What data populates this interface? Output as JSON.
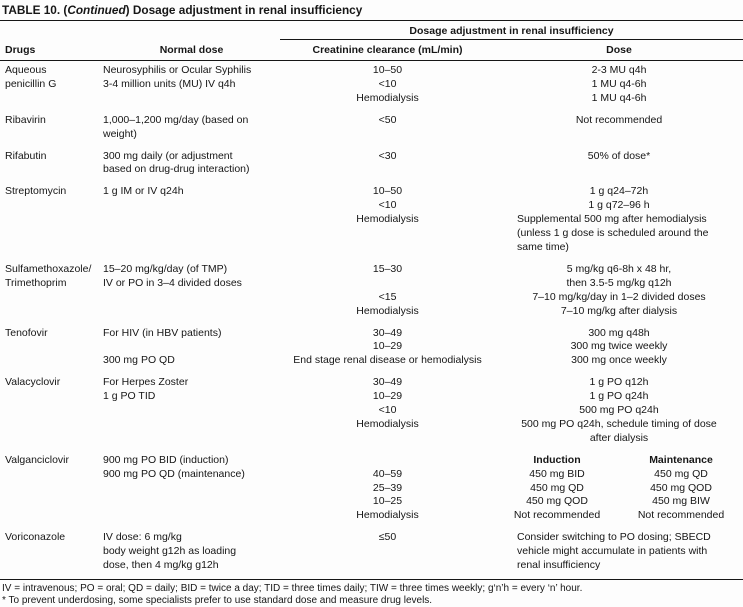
{
  "colors": {
    "text": "#161616",
    "rule": "#161616",
    "background": "#fdfdfd"
  },
  "title": {
    "part1": "TABLE 10. (",
    "italic": "Continued",
    "part2": ") Dosage adjustment in renal insufficiency"
  },
  "header": {
    "group": "Dosage adjustment in renal insufficiency",
    "col_drugs": "Drugs",
    "col_normal_dose": "Normal dose",
    "col_creatinine": "Creatinine clearance (mL/min)",
    "col_dose": "Dose"
  },
  "table": {
    "rows": [
      {
        "drug_name": "Aqueous penicillin G",
        "lines": [
          {
            "drug": "Aqueous",
            "normal": "Neurosyphilis or Ocular Syphilis",
            "cr": "10–50",
            "dose": "2-3 MU q4h"
          },
          {
            "drug": "penicillin G",
            "normal": "3-4 million units (MU) IV q4h",
            "cr": "<10",
            "dose": "1 MU q4-6h"
          },
          {
            "drug": "",
            "normal": "",
            "cr": "Hemodialysis",
            "dose": "1 MU q4-6h"
          }
        ]
      },
      {
        "drug_name": "Ribavirin",
        "lines": [
          {
            "drug": "Ribavirin",
            "normal": "1,000–1,200 mg/day (based on",
            "cr": "<50",
            "dose": "Not recommended"
          },
          {
            "drug": "",
            "normal": "weight)",
            "cr": "",
            "dose": ""
          }
        ]
      },
      {
        "drug_name": "Rifabutin",
        "lines": [
          {
            "drug": "Rifabutin",
            "normal": "300 mg daily (or adjustment",
            "cr": "<30",
            "dose": "50% of dose*"
          },
          {
            "drug": "",
            "normal": "based on drug-drug interaction)",
            "cr": "",
            "dose": ""
          }
        ]
      },
      {
        "drug_name": "Streptomycin",
        "lines": [
          {
            "drug": "Streptomycin",
            "normal": "1 g IM or IV q24h",
            "cr": "10–50",
            "dose": "1 g q24–72h"
          },
          {
            "drug": "",
            "normal": "",
            "cr": "<10",
            "dose": "1 g q72–96 h"
          },
          {
            "drug": "",
            "normal": "",
            "cr": "Hemodialysis",
            "dose": "Supplemental 500 mg after hemodialysis",
            "align": "left"
          },
          {
            "drug": "",
            "normal": "",
            "cr": "",
            "dose": "(unless 1 g dose is scheduled around the",
            "align": "left"
          },
          {
            "drug": "",
            "normal": "",
            "cr": "",
            "dose": "same time)",
            "align": "left"
          }
        ]
      },
      {
        "drug_name": "Sulfamethoxazole/Trimethoprim",
        "lines": [
          {
            "drug": "Sulfamethoxazole/",
            "normal": "15–20 mg/kg/day (of TMP)",
            "cr": "15–30",
            "dose": "5 mg/kg q6-8h x 48 hr,"
          },
          {
            "drug": "Trimethoprim",
            "normal": "IV or PO in 3–4 divided doses",
            "cr": "",
            "dose": "then 3.5-5 mg/kg q12h"
          },
          {
            "drug": "",
            "normal": "",
            "cr": "<15",
            "dose": "7–10 mg/kg/day in 1–2 divided doses"
          },
          {
            "drug": "",
            "normal": "",
            "cr": "Hemodialysis",
            "dose": "7–10 mg/kg after dialysis"
          }
        ]
      },
      {
        "drug_name": "Tenofovir",
        "lines": [
          {
            "drug": "Tenofovir",
            "normal": "For HIV (in HBV patients)",
            "cr": "30–49",
            "dose": "300 mg q48h"
          },
          {
            "drug": "",
            "normal": "",
            "cr": "10–29",
            "dose": "300 mg twice weekly"
          },
          {
            "drug": "",
            "normal": "300 mg PO QD",
            "cr": "End stage renal disease or hemodialysis",
            "dose": "300 mg once weekly"
          }
        ]
      },
      {
        "drug_name": "Valacyclovir",
        "lines": [
          {
            "drug": "Valacyclovir",
            "normal": "For Herpes Zoster",
            "cr": "30–49",
            "dose": "1 g PO q12h"
          },
          {
            "drug": "",
            "normal": "1 g PO TID",
            "cr": "10–29",
            "dose": "1 g PO q24h"
          },
          {
            "drug": "",
            "normal": "",
            "cr": "<10",
            "dose": "500 mg PO q24h"
          },
          {
            "drug": "",
            "normal": "",
            "cr": "Hemodialysis",
            "dose": "500 mg PO q24h, schedule timing of dose"
          },
          {
            "drug": "",
            "normal": "",
            "cr": "",
            "dose": "after dialysis"
          }
        ]
      },
      {
        "drug_name": "Valganciclovir",
        "lines": [
          {
            "drug": "Valganciclovir",
            "normal": "900 mg PO BID (induction)",
            "cr": "",
            "dose_a": "Induction",
            "dose_b": "Maintenance",
            "bold": true
          },
          {
            "drug": "",
            "normal": "900 mg PO QD (maintenance)",
            "cr": "40–59",
            "dose_a": "450 mg BID",
            "dose_b": "450 mg QD"
          },
          {
            "drug": "",
            "normal": "",
            "cr": "25–39",
            "dose_a": "450 mg QD",
            "dose_b": "450 mg QOD"
          },
          {
            "drug": "",
            "normal": "",
            "cr": "10–25",
            "dose_a": "450 mg QOD",
            "dose_b": "450 mg BIW"
          },
          {
            "drug": "",
            "normal": "",
            "cr": "Hemodialysis",
            "dose_a": "Not recommended",
            "dose_b": "Not recommended"
          }
        ]
      },
      {
        "drug_name": "Voriconazole",
        "lines": [
          {
            "drug": "Voriconazole",
            "normal": "IV dose: 6 mg/kg",
            "cr": "≤50",
            "dose": "Consider switching to PO dosing; SBECD",
            "align": "left"
          },
          {
            "drug": "",
            "normal": "body weight g12h as loading",
            "cr": "",
            "dose": "vehicle might accumulate in patients with",
            "align": "left"
          },
          {
            "drug": "",
            "normal": "dose, then 4 mg/kg g12h",
            "cr": "",
            "dose": "renal insufficiency",
            "align": "left"
          }
        ]
      }
    ]
  },
  "footnotes": {
    "abbrev": "IV = intravenous; PO = oral; QD = daily; BID = twice a day; TID = three times daily; TIW = three times weekly; g‘n’h = every ‘n’ hour.",
    "asterisk": "* To prevent underdosing, some specialists prefer to use standard dose and measure drug levels."
  }
}
